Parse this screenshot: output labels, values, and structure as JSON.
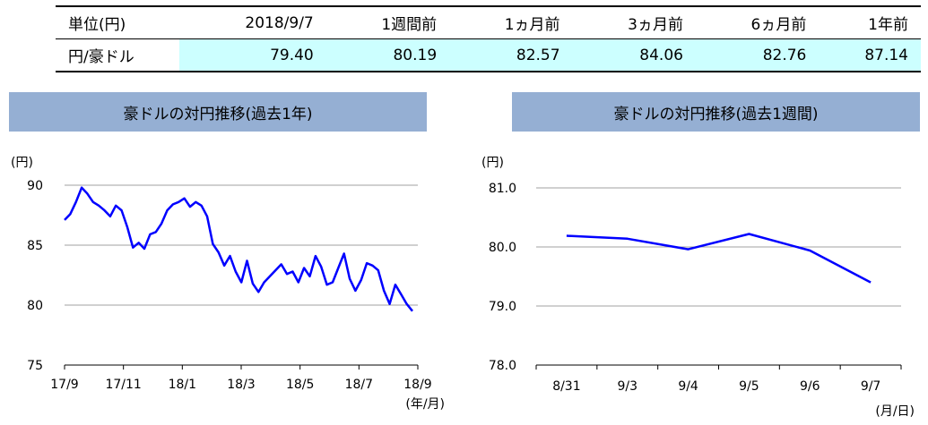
{
  "table": {
    "header": [
      "単位(円)",
      "2018/9/7",
      "1週間前",
      "1ヵ月前",
      "3ヵ月前",
      "6ヵ月前",
      "1年前"
    ],
    "row_label": "円/豪ドル",
    "values": [
      "79.40",
      "80.19",
      "82.57",
      "84.06",
      "82.76",
      "87.14"
    ]
  },
  "chart_data": [
    {
      "type": "line",
      "title": "豪ドルの対円推移(過去1年)",
      "ylabel": "(円)",
      "xlabel": "(年/月)",
      "ylim": [
        75,
        90
      ],
      "yticks": [
        "90",
        "85",
        "80",
        "75"
      ],
      "xticks": [
        "17/9",
        "17/11",
        "18/1",
        "18/3",
        "18/5",
        "18/7",
        "18/9"
      ],
      "grid": true,
      "color": "#0000ff",
      "x": [
        "17/9",
        "17/9",
        "17/9",
        "17/9",
        "17/9",
        "17/10",
        "17/10",
        "17/10",
        "17/10",
        "17/10",
        "17/10",
        "17/11",
        "17/11",
        "17/11",
        "17/11",
        "17/11",
        "17/12",
        "17/12",
        "17/12",
        "17/12",
        "17/12",
        "18/1",
        "18/1",
        "18/1",
        "18/1",
        "18/1",
        "18/1",
        "18/2",
        "18/2",
        "18/2",
        "18/2",
        "18/3",
        "18/3",
        "18/3",
        "18/3",
        "18/3",
        "18/4",
        "18/4",
        "18/4",
        "18/4",
        "18/5",
        "18/5",
        "18/5",
        "18/5",
        "18/5",
        "18/5",
        "18/6",
        "18/6",
        "18/6",
        "18/6",
        "18/6",
        "18/7",
        "18/7",
        "18/7",
        "18/7",
        "18/7",
        "18/8",
        "18/8",
        "18/8",
        "18/8",
        "18/8",
        "18/9"
      ],
      "values": [
        87.1,
        87.6,
        88.6,
        89.8,
        89.3,
        88.6,
        88.3,
        87.9,
        87.4,
        88.3,
        87.9,
        86.5,
        84.8,
        85.2,
        84.7,
        85.9,
        86.1,
        86.8,
        87.9,
        88.4,
        88.6,
        88.9,
        88.2,
        88.6,
        88.3,
        87.4,
        85.1,
        84.4,
        83.3,
        84.1,
        82.8,
        81.9,
        83.7,
        81.8,
        81.1,
        81.9,
        82.4,
        82.9,
        83.4,
        82.6,
        82.8,
        81.9,
        83.1,
        82.4,
        84.1,
        83.2,
        81.7,
        81.9,
        83.1,
        84.3,
        82.2,
        81.2,
        82.1,
        83.5,
        83.3,
        82.9,
        81.2,
        80.1,
        81.7,
        80.9,
        80.1,
        79.5
      ]
    },
    {
      "type": "line",
      "title": "豪ドルの対円推移(過去1週間)",
      "ylabel": "(円)",
      "xlabel": "(月/日)",
      "ylim": [
        78.0,
        81.0
      ],
      "yticks": [
        "81.0",
        "80.0",
        "79.0",
        "78.0"
      ],
      "categories": [
        "8/31",
        "9/3",
        "9/4",
        "9/5",
        "9/6",
        "9/7"
      ],
      "values": [
        80.19,
        80.14,
        79.96,
        80.22,
        79.94,
        79.4
      ],
      "grid": true,
      "color": "#0000ff"
    }
  ]
}
